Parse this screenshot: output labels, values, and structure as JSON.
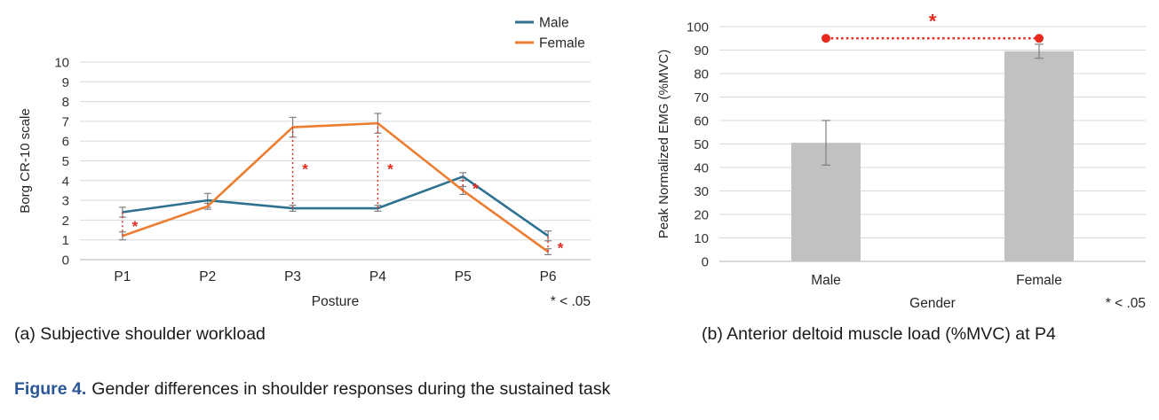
{
  "figure": {
    "subcaption_a": "(a) Subjective shoulder workload",
    "subcaption_b": "(b) Anterior deltoid muscle load (%MVC) at P4",
    "caption_label": "Figure 4.",
    "caption_text": "Gender differences in shoulder responses during the sustained task"
  },
  "colors": {
    "male_line": "#2e7190",
    "female_line": "#ed7d31",
    "bar_fill": "#c1c1c1",
    "significance_red": "#e8291c",
    "grid": "#d9d9d9",
    "zero_axis": "#b3b3b3",
    "error_bar": "#7f7f7f",
    "tick_text": "#333333",
    "caption_blue": "#2b5797"
  },
  "chart_data": [
    {
      "type": "line",
      "categories": [
        "P1",
        "P2",
        "P3",
        "P4",
        "P5",
        "P6"
      ],
      "series": [
        {
          "name": "Male",
          "color_key": "male_line",
          "values": [
            2.4,
            3.0,
            2.6,
            2.6,
            4.2,
            1.2
          ],
          "errors": [
            0.25,
            0.35,
            0.15,
            0.15,
            0.2,
            0.25
          ]
        },
        {
          "name": "Female",
          "color_key": "female_line",
          "values": [
            1.2,
            2.7,
            6.7,
            6.9,
            3.5,
            0.4
          ],
          "errors": [
            0.2,
            0.15,
            0.5,
            0.5,
            0.2,
            0.15
          ]
        }
      ],
      "xlabel": "Posture",
      "ylabel": "Borg CR-10 scale",
      "ylim": [
        0,
        10
      ],
      "yticks": [
        0,
        1,
        2,
        3,
        4,
        5,
        6,
        7,
        8,
        9,
        10
      ],
      "grid": true,
      "legend_position": "top-right",
      "sig_note": "* < .05",
      "significance": [
        {
          "category": "P1",
          "star_y": 1.7
        },
        {
          "category": "P3",
          "star_y": 4.6
        },
        {
          "category": "P4",
          "star_y": 4.6
        },
        {
          "category": "P5",
          "star_y": 3.6
        },
        {
          "category": "P6",
          "star_y": 0.6
        }
      ],
      "star_symbol": "*"
    },
    {
      "type": "bar",
      "categories": [
        "Male",
        "Female"
      ],
      "values": [
        50.5,
        89.5
      ],
      "errors": [
        9.5,
        3
      ],
      "xlabel": "Gender",
      "ylabel": "Peak Normalized EMG (%MVC)",
      "ylim": [
        0,
        100
      ],
      "yticks": [
        0,
        10,
        20,
        30,
        40,
        50,
        60,
        70,
        80,
        90,
        100
      ],
      "grid": true,
      "sig_note": "* < .05",
      "significance_bracket": {
        "y": 95,
        "from": "Male",
        "to": "Female",
        "star": "*"
      }
    }
  ]
}
